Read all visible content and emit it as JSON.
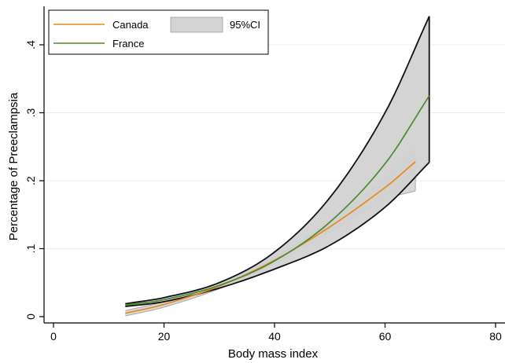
{
  "chart_data": {
    "type": "line",
    "title": "",
    "xlabel": "Body mass index",
    "ylabel": "Percentage of Preeclampsia",
    "xlim": [
      0,
      80
    ],
    "ylim": [
      0,
      0.45
    ],
    "x_ticks": [
      0,
      20,
      40,
      60,
      80
    ],
    "x_tick_labels": [
      "0",
      "20",
      "40",
      "60",
      "80"
    ],
    "y_ticks": [
      0,
      0.1,
      0.2,
      0.3,
      0.4
    ],
    "y_tick_labels": [
      "0",
      ".1",
      ".2",
      ".3",
      ".4"
    ],
    "grid": "horizontal",
    "legend": {
      "position": "top-left",
      "entries": [
        "Canada",
        "95%CI",
        "France"
      ]
    },
    "band_label": "95%CI",
    "series": [
      {
        "name": "Canada",
        "color": "#e8891c",
        "x": [
          13,
          20,
          30,
          40,
          50,
          60,
          65.5
        ],
        "y": [
          0.005,
          0.018,
          0.045,
          0.083,
          0.132,
          0.19,
          0.228
        ],
        "band": {
          "x": [
            13,
            20,
            30,
            40,
            50,
            60,
            65.5
          ],
          "lower": [
            0.001,
            0.014,
            0.041,
            0.078,
            0.124,
            0.172,
            0.185
          ],
          "upper": [
            0.009,
            0.022,
            0.049,
            0.088,
            0.14,
            0.204,
            0.248
          ]
        }
      },
      {
        "name": "France",
        "color": "#4d8a2e",
        "x": [
          13,
          20,
          30,
          40,
          50,
          60,
          68
        ],
        "y": [
          0.017,
          0.025,
          0.046,
          0.082,
          0.139,
          0.225,
          0.325
        ],
        "band": {
          "x": [
            13,
            20,
            30,
            40,
            50,
            60,
            68
          ],
          "lower": [
            0.015,
            0.022,
            0.042,
            0.07,
            0.105,
            0.161,
            0.227
          ],
          "upper": [
            0.019,
            0.028,
            0.05,
            0.095,
            0.175,
            0.3,
            0.442
          ]
        }
      }
    ]
  }
}
